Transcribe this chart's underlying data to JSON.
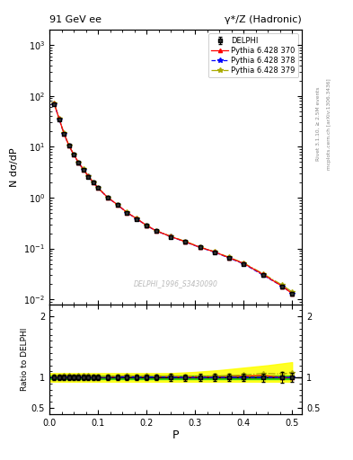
{
  "title_left": "91 GeV ee",
  "title_right": "γ*/Z (Hadronic)",
  "ylabel_main": "N dσ/dP",
  "ylabel_ratio": "Ratio to DELPHI",
  "xlabel": "P",
  "watermark": "DELPHI_1996_S3430090",
  "right_label_top": "Rivet 3.1.10, ≥ 2.5M events",
  "right_label_bot": "mcplots.cern.ch [arXiv:1306.3436]",
  "data_x": [
    0.01,
    0.02,
    0.03,
    0.04,
    0.05,
    0.06,
    0.07,
    0.08,
    0.09,
    0.1,
    0.12,
    0.14,
    0.16,
    0.18,
    0.2,
    0.22,
    0.25,
    0.28,
    0.31,
    0.34,
    0.37,
    0.4,
    0.44,
    0.48,
    0.5
  ],
  "data_y": [
    70.0,
    35.0,
    18.0,
    10.5,
    7.0,
    4.8,
    3.5,
    2.6,
    2.0,
    1.55,
    1.0,
    0.72,
    0.5,
    0.38,
    0.28,
    0.22,
    0.17,
    0.135,
    0.105,
    0.085,
    0.065,
    0.05,
    0.03,
    0.018,
    0.013
  ],
  "data_yerr": [
    3.0,
    1.5,
    0.8,
    0.5,
    0.3,
    0.2,
    0.15,
    0.12,
    0.09,
    0.07,
    0.05,
    0.035,
    0.025,
    0.018,
    0.014,
    0.011,
    0.009,
    0.007,
    0.006,
    0.005,
    0.004,
    0.003,
    0.002,
    0.0015,
    0.001
  ],
  "py370_y": [
    70.5,
    35.5,
    18.3,
    10.7,
    7.1,
    4.9,
    3.6,
    2.65,
    2.02,
    1.56,
    1.01,
    0.73,
    0.51,
    0.385,
    0.285,
    0.223,
    0.172,
    0.136,
    0.106,
    0.086,
    0.066,
    0.051,
    0.031,
    0.018,
    0.013
  ],
  "py378_y": [
    70.3,
    35.2,
    18.1,
    10.6,
    7.05,
    4.85,
    3.55,
    2.62,
    2.01,
    1.555,
    1.005,
    0.725,
    0.505,
    0.382,
    0.282,
    0.222,
    0.171,
    0.135,
    0.105,
    0.085,
    0.065,
    0.05,
    0.03,
    0.018,
    0.013
  ],
  "py379_y": [
    70.8,
    35.8,
    18.5,
    10.8,
    7.15,
    4.95,
    3.62,
    2.67,
    2.04,
    1.57,
    1.015,
    0.735,
    0.515,
    0.388,
    0.288,
    0.225,
    0.174,
    0.138,
    0.107,
    0.087,
    0.067,
    0.052,
    0.032,
    0.019,
    0.014
  ],
  "band_x": [
    0.0,
    0.02,
    0.05,
    0.1,
    0.15,
    0.2,
    0.25,
    0.3,
    0.35,
    0.4,
    0.45,
    0.5
  ],
  "band_green_lo": [
    0.97,
    0.97,
    0.97,
    0.97,
    0.97,
    0.97,
    0.97,
    0.97,
    0.97,
    0.97,
    0.97,
    0.97
  ],
  "band_green_hi": [
    1.03,
    1.03,
    1.03,
    1.03,
    1.03,
    1.03,
    1.03,
    1.03,
    1.03,
    1.03,
    1.03,
    1.03
  ],
  "band_yellow_lo": [
    0.93,
    0.93,
    0.93,
    0.93,
    0.93,
    0.93,
    0.93,
    0.93,
    0.93,
    0.93,
    0.93,
    0.93
  ],
  "band_yellow_hi": [
    1.07,
    1.07,
    1.07,
    1.07,
    1.07,
    1.07,
    1.07,
    1.09,
    1.12,
    1.16,
    1.2,
    1.25
  ],
  "color_data": "#000000",
  "color_py370": "#ff0000",
  "color_py378": "#0000ff",
  "color_py379": "#aaaa00",
  "color_green_band": "#00cc00",
  "color_yellow_band": "#ffff00",
  "color_watermark": "#bbbbbb",
  "xlim": [
    0.0,
    0.52
  ],
  "ylim_main": [
    0.008,
    2000
  ],
  "ylim_ratio": [
    0.4,
    2.2
  ]
}
